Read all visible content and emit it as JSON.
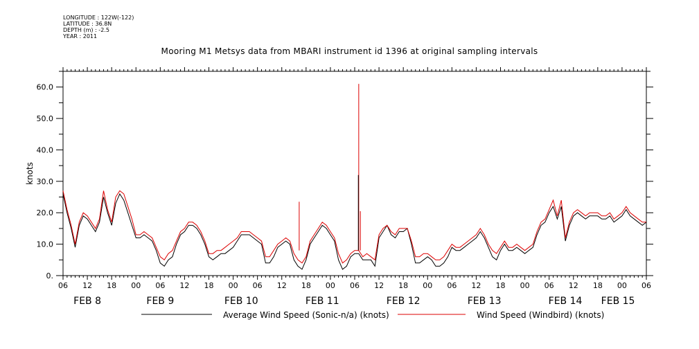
{
  "meta": {
    "longitude": "LONGITUDE : 122W(-122)",
    "latitude": "LATITUDE : 36.8N",
    "depth": "DEPTH (m) : -2.5",
    "year": "YEAR : 2011"
  },
  "chart_data": {
    "type": "line",
    "title": "Mooring M1 Metsys data from MBARI instrument id 1396 at original sampling intervals",
    "ylabel": "knots",
    "xlabel": "",
    "ylim": [
      0,
      65
    ],
    "yticks": [
      "0.",
      "10.0",
      "20.0",
      "30.0",
      "40.0",
      "50.0",
      "60.0"
    ],
    "x_unit": "hours since FEB 8 00:00",
    "xlim": [
      6,
      150
    ],
    "hour_ticks": [
      {
        "h": 6,
        "label": "06"
      },
      {
        "h": 12,
        "label": "12"
      },
      {
        "h": 18,
        "label": "18"
      },
      {
        "h": 24,
        "label": "00"
      },
      {
        "h": 30,
        "label": "06"
      },
      {
        "h": 36,
        "label": "12"
      },
      {
        "h": 42,
        "label": "18"
      },
      {
        "h": 48,
        "label": "00"
      },
      {
        "h": 54,
        "label": "06"
      },
      {
        "h": 60,
        "label": "12"
      },
      {
        "h": 66,
        "label": "18"
      },
      {
        "h": 72,
        "label": "00"
      },
      {
        "h": 78,
        "label": "06"
      },
      {
        "h": 84,
        "label": "12"
      },
      {
        "h": 90,
        "label": "18"
      },
      {
        "h": 96,
        "label": "00"
      },
      {
        "h": 102,
        "label": "06"
      },
      {
        "h": 108,
        "label": "12"
      },
      {
        "h": 114,
        "label": "18"
      },
      {
        "h": 120,
        "label": "00"
      },
      {
        "h": 126,
        "label": "06"
      },
      {
        "h": 132,
        "label": "12"
      },
      {
        "h": 138,
        "label": "18"
      },
      {
        "h": 144,
        "label": "00"
      },
      {
        "h": 150,
        "label": "06"
      }
    ],
    "day_labels": [
      {
        "h": 12,
        "label": "FEB  8"
      },
      {
        "h": 30,
        "label": "FEB  9"
      },
      {
        "h": 50,
        "label": "FEB 10"
      },
      {
        "h": 70,
        "label": "FEB 11"
      },
      {
        "h": 90,
        "label": "FEB 12"
      },
      {
        "h": 110,
        "label": "FEB 13"
      },
      {
        "h": 130,
        "label": "FEB 14"
      },
      {
        "h": 143,
        "label": "FEB 15"
      }
    ],
    "legend": [
      {
        "name": "Average Wind Speed (Sonic-n/a) (knots)",
        "color": "#000000"
      },
      {
        "name": "Wind Speed (Windbird) (knots)",
        "color": "#dd0000"
      }
    ],
    "series": [
      {
        "name": "Average Wind Speed (Sonic-n/a) (knots)",
        "color": "#000000",
        "x": [
          6,
          7,
          8,
          9,
          10,
          11,
          12,
          13,
          14,
          15,
          16,
          17,
          18,
          19,
          20,
          21,
          22,
          23,
          24,
          25,
          26,
          27,
          28,
          29,
          30,
          31,
          32,
          33,
          34,
          35,
          36,
          37,
          38,
          39,
          40,
          41,
          42,
          43,
          44,
          45,
          46,
          47,
          48,
          49,
          50,
          51,
          52,
          53,
          54,
          55,
          56,
          57,
          58,
          59,
          60,
          61,
          62,
          63,
          64,
          65,
          66,
          67,
          68,
          69,
          70,
          71,
          72,
          73,
          74,
          75,
          76,
          77,
          78,
          79,
          80,
          81,
          82,
          83,
          84,
          85,
          86,
          87,
          88,
          89,
          90,
          91,
          92,
          93,
          94,
          95,
          96,
          97,
          98,
          99,
          100,
          101,
          102,
          103,
          104,
          105,
          106,
          107,
          108,
          109,
          110,
          111,
          112,
          113,
          114,
          115,
          116,
          117,
          118,
          119,
          120,
          121,
          122,
          123,
          124,
          125,
          126,
          127,
          128,
          129,
          130,
          131,
          132,
          133,
          134,
          135,
          136,
          137,
          138,
          139,
          140,
          141,
          142,
          143,
          144,
          145,
          146,
          147,
          148,
          149,
          150
        ],
        "y": [
          26,
          20,
          15,
          9,
          16,
          19,
          18,
          16,
          14,
          17,
          25,
          20,
          16,
          23,
          26,
          24,
          20,
          16,
          12,
          12,
          13,
          12,
          11,
          8,
          4,
          3,
          5,
          6,
          10,
          13,
          14,
          16,
          16,
          15,
          13,
          10,
          6,
          5,
          6,
          7,
          7,
          8,
          9,
          11,
          13,
          13,
          13,
          12,
          11,
          10,
          4,
          4,
          6,
          9,
          10,
          11,
          10,
          5,
          3,
          2,
          5,
          10,
          12,
          14,
          16,
          15,
          13,
          11,
          5,
          2,
          3,
          6,
          7,
          7,
          5,
          5,
          5,
          3,
          12,
          14,
          16,
          13,
          12,
          14,
          14,
          15,
          10,
          4,
          4,
          5,
          6,
          5,
          3,
          3,
          4,
          6,
          9,
          8,
          8,
          9,
          10,
          11,
          12,
          14,
          12,
          9,
          6,
          5,
          8,
          10,
          8,
          8,
          9,
          8,
          7,
          8,
          9,
          13,
          16,
          17,
          20,
          22,
          18,
          22,
          11,
          16,
          19,
          20,
          19,
          18,
          19,
          19,
          19,
          18,
          18,
          19,
          17,
          18,
          19,
          21,
          19,
          18,
          17,
          16,
          17
        ]
      },
      {
        "name": "Wind Speed (Windbird) (knots)",
        "color": "#dd0000",
        "x": [
          6,
          7,
          8,
          9,
          10,
          11,
          12,
          13,
          14,
          15,
          16,
          17,
          18,
          19,
          20,
          21,
          22,
          23,
          24,
          25,
          26,
          27,
          28,
          29,
          30,
          31,
          32,
          33,
          34,
          35,
          36,
          37,
          38,
          39,
          40,
          41,
          42,
          43,
          44,
          45,
          46,
          47,
          48,
          49,
          50,
          51,
          52,
          53,
          54,
          55,
          56,
          57,
          58,
          59,
          60,
          61,
          62,
          63,
          64,
          65,
          66,
          67,
          68,
          69,
          70,
          71,
          72,
          73,
          74,
          75,
          76,
          77,
          78,
          79,
          80,
          81,
          82,
          83,
          84,
          85,
          86,
          87,
          88,
          89,
          90,
          91,
          92,
          93,
          94,
          95,
          96,
          97,
          98,
          99,
          100,
          101,
          102,
          103,
          104,
          105,
          106,
          107,
          108,
          109,
          110,
          111,
          112,
          113,
          114,
          115,
          116,
          117,
          118,
          119,
          120,
          121,
          122,
          123,
          124,
          125,
          126,
          127,
          128,
          129,
          130,
          131,
          132,
          133,
          134,
          135,
          136,
          137,
          138,
          139,
          140,
          141,
          142,
          143,
          144,
          145,
          146,
          147,
          148,
          149,
          150
        ],
        "y": [
          27,
          21,
          16,
          10,
          17,
          20,
          19,
          17,
          15,
          18,
          27,
          21,
          17,
          25,
          27,
          26,
          22,
          18,
          13,
          13,
          14,
          13,
          12,
          9,
          6,
          5,
          7,
          8,
          11,
          14,
          15,
          17,
          17,
          16,
          14,
          11,
          7,
          7,
          8,
          8,
          9,
          10,
          11,
          12,
          14,
          14,
          14,
          13,
          12,
          11,
          6,
          6,
          8,
          10,
          11,
          12,
          11,
          7,
          5,
          4,
          6,
          11,
          13,
          15,
          17,
          16,
          14,
          12,
          7,
          4,
          5,
          7,
          8,
          8,
          6,
          7,
          6,
          5,
          13,
          15,
          16,
          14,
          13,
          15,
          15,
          15,
          11,
          6,
          6,
          7,
          7,
          6,
          5,
          5,
          6,
          8,
          10,
          9,
          9,
          10,
          11,
          12,
          13,
          15,
          13,
          10,
          8,
          7,
          9,
          11,
          9,
          9,
          10,
          9,
          8,
          9,
          10,
          14,
          17,
          18,
          21,
          24,
          19,
          24,
          12,
          17,
          20,
          21,
          20,
          19,
          20,
          20,
          20,
          19,
          19,
          20,
          18,
          19,
          20,
          22,
          20,
          19,
          18,
          17,
          17
        ]
      }
    ],
    "spikes": [
      {
        "x": 64.3,
        "y": 23.5,
        "series": "Wind Speed (Windbird) (knots)"
      },
      {
        "x": 79.0,
        "y": 61.0,
        "series": "Wind Speed (Windbird) (knots)"
      },
      {
        "x": 78.9,
        "y": 32.0,
        "series": "Average Wind Speed (Sonic-n/a) (knots)"
      },
      {
        "x": 79.4,
        "y": 20.5,
        "series": "Wind Speed (Windbird) (knots)"
      }
    ]
  }
}
